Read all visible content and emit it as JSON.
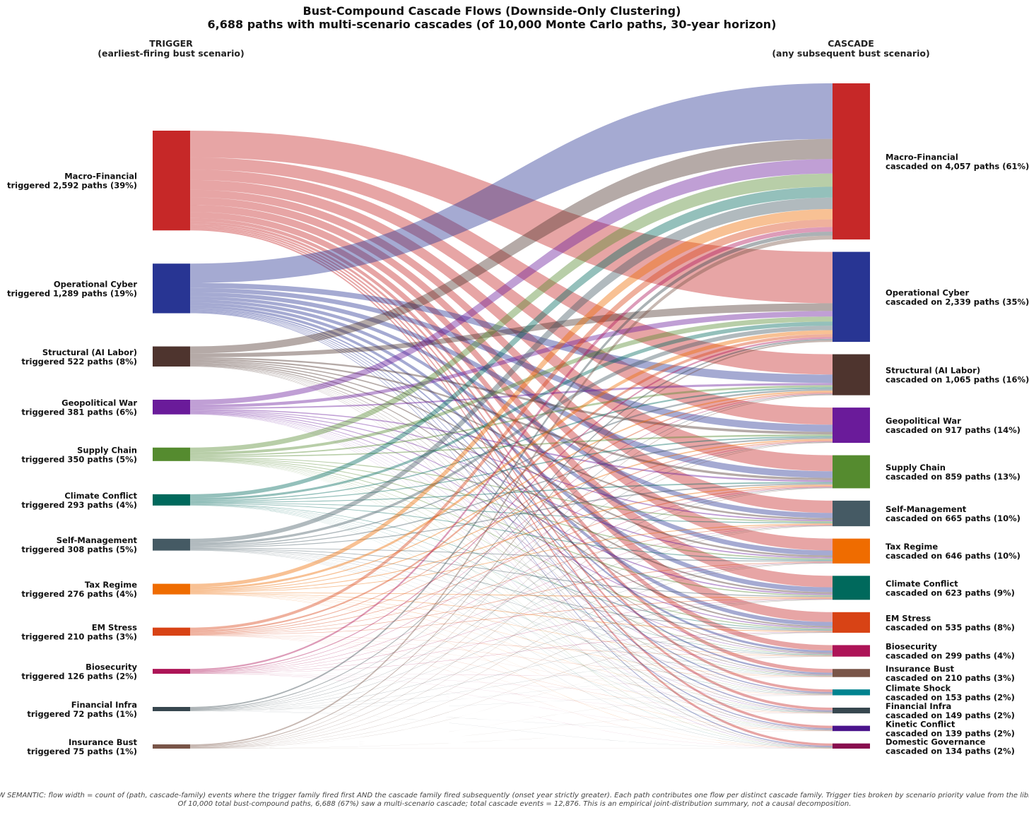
{
  "chart_data": {
    "type": "sankey",
    "title_line1": "Bust-Compound Cascade Flows (Downside-Only Clustering)",
    "title_line2": "6,688 paths with multi-scenario cascades (of 10,000 Monte Carlo paths, 30-year horizon)",
    "left_header": "TRIGGER",
    "left_subheader": "(earliest-firing bust scenario)",
    "right_header": "CASCADE",
    "right_subheader": "(any subsequent bust scenario)",
    "triggers": [
      {
        "name": "Macro-Financial",
        "label": "triggered 2,592 paths (39%)",
        "value": 2592,
        "color": "#c62828"
      },
      {
        "name": "Operational Cyber",
        "label": "triggered 1,289 paths (19%)",
        "value": 1289,
        "color": "#283593"
      },
      {
        "name": "Structural (AI Labor)",
        "label": "triggered 522 paths (8%)",
        "value": 522,
        "color": "#4e342e"
      },
      {
        "name": "Geopolitical War",
        "label": "triggered 381 paths (6%)",
        "value": 381,
        "color": "#6a1b9a"
      },
      {
        "name": "Supply Chain",
        "label": "triggered 350 paths (5%)",
        "value": 350,
        "color": "#558b2f"
      },
      {
        "name": "Climate Conflict",
        "label": "triggered 293 paths (4%)",
        "value": 293,
        "color": "#00695c"
      },
      {
        "name": "Self-Management",
        "label": "triggered 308 paths (5%)",
        "value": 308,
        "color": "#455a64"
      },
      {
        "name": "Tax Regime",
        "label": "triggered 276 paths (4%)",
        "value": 276,
        "color": "#ef6c00"
      },
      {
        "name": "EM Stress",
        "label": "triggered 210 paths (3%)",
        "value": 210,
        "color": "#d84315"
      },
      {
        "name": "Biosecurity",
        "label": "triggered 126 paths (2%)",
        "value": 126,
        "color": "#ad1457"
      },
      {
        "name": "Financial Infra",
        "label": "triggered 72 paths (1%)",
        "value": 72,
        "color": "#37474f"
      },
      {
        "name": "Insurance Bust",
        "label": "triggered 75 paths (1%)",
        "value": 75,
        "color": "#795548"
      }
    ],
    "cascades": [
      {
        "name": "Macro-Financial",
        "label": "cascaded on 4,057 paths (61%)",
        "value": 4057,
        "color": "#c62828"
      },
      {
        "name": "Operational Cyber",
        "label": "cascaded on 2,339 paths (35%)",
        "value": 2339,
        "color": "#283593"
      },
      {
        "name": "Structural (AI Labor)",
        "label": "cascaded on 1,065 paths (16%)",
        "value": 1065,
        "color": "#4e342e"
      },
      {
        "name": "Geopolitical War",
        "label": "cascaded on 917 paths (14%)",
        "value": 917,
        "color": "#6a1b9a"
      },
      {
        "name": "Supply Chain",
        "label": "cascaded on 859 paths (13%)",
        "value": 859,
        "color": "#558b2f"
      },
      {
        "name": "Self-Management",
        "label": "cascaded on 665 paths (10%)",
        "value": 665,
        "color": "#455a64"
      },
      {
        "name": "Tax Regime",
        "label": "cascaded on 646 paths (10%)",
        "value": 646,
        "color": "#ef6c00"
      },
      {
        "name": "Climate Conflict",
        "label": "cascaded on 623 paths (9%)",
        "value": 623,
        "color": "#00695c"
      },
      {
        "name": "EM Stress",
        "label": "cascaded on 535 paths (8%)",
        "value": 535,
        "color": "#d84315"
      },
      {
        "name": "Biosecurity",
        "label": "cascaded on 299 paths (4%)",
        "value": 299,
        "color": "#ad1457"
      },
      {
        "name": "Insurance Bust",
        "label": "cascaded on 210 paths (3%)",
        "value": 210,
        "color": "#795548"
      },
      {
        "name": "Climate Shock",
        "label": "cascaded on 153 paths (2%)",
        "value": 153,
        "color": "#00838f"
      },
      {
        "name": "Financial Infra",
        "label": "cascaded on 149 paths (2%)",
        "value": 149,
        "color": "#37474f"
      },
      {
        "name": "Kinetic Conflict",
        "label": "cascaded on 139 paths (2%)",
        "value": 139,
        "color": "#4a148c"
      },
      {
        "name": "Domestic Governance",
        "label": "cascaded on 134 paths (2%)",
        "value": 134,
        "color": "#880e4f"
      }
    ],
    "footnote_line1": "FLOW SEMANTIC: flow width = count of (path, cascade-family) events where the trigger family fired first AND the cascade family fired subsequently (onset year strictly greater). Each path contributes one flow per distinct cascade family. Trigger ties broken by scenario priority value from the library.",
    "footnote_line2": "Of 10,000 total bust-compound paths, 6,688 (67%) saw a multi-scenario cascade; total cascade events = 12,876. This is an empirical joint-distribution summary, not a causal decomposition."
  }
}
